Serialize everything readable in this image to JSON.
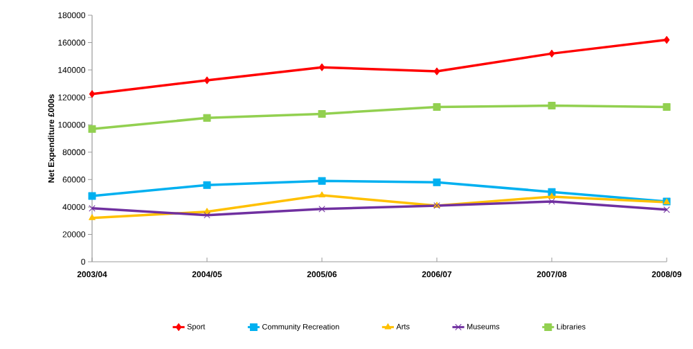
{
  "chart_data": {
    "type": "line",
    "ylabel": "Net Expenditure £000s",
    "categories": [
      "2003/04",
      "2004/05",
      "2005/06",
      "2006/07",
      "2007/08",
      "2008/09"
    ],
    "series": [
      {
        "name": "Sport",
        "color": "#ff0000",
        "marker": "diamond",
        "values": [
          122500,
          132500,
          142000,
          139000,
          152000,
          162000
        ]
      },
      {
        "name": "Community Recreation",
        "color": "#00b0f0",
        "marker": "square",
        "values": [
          48000,
          56000,
          59000,
          58000,
          51000,
          44000
        ]
      },
      {
        "name": "Arts",
        "color": "#ffc000",
        "marker": "triangle",
        "values": [
          32000,
          36500,
          48500,
          41000,
          47500,
          43500
        ]
      },
      {
        "name": "Museums",
        "color": "#7030a0",
        "marker": "cross",
        "values": [
          39000,
          34000,
          38500,
          41000,
          44000,
          38000
        ]
      },
      {
        "name": "Libraries",
        "color": "#92d050",
        "marker": "square",
        "values": [
          97000,
          105000,
          108000,
          113000,
          114000,
          113000
        ]
      }
    ],
    "ylim": [
      0,
      180000
    ],
    "yticks": [
      0,
      20000,
      40000,
      60000,
      80000,
      100000,
      120000,
      140000,
      160000,
      180000
    ],
    "grid": false,
    "legend": "bottom"
  }
}
